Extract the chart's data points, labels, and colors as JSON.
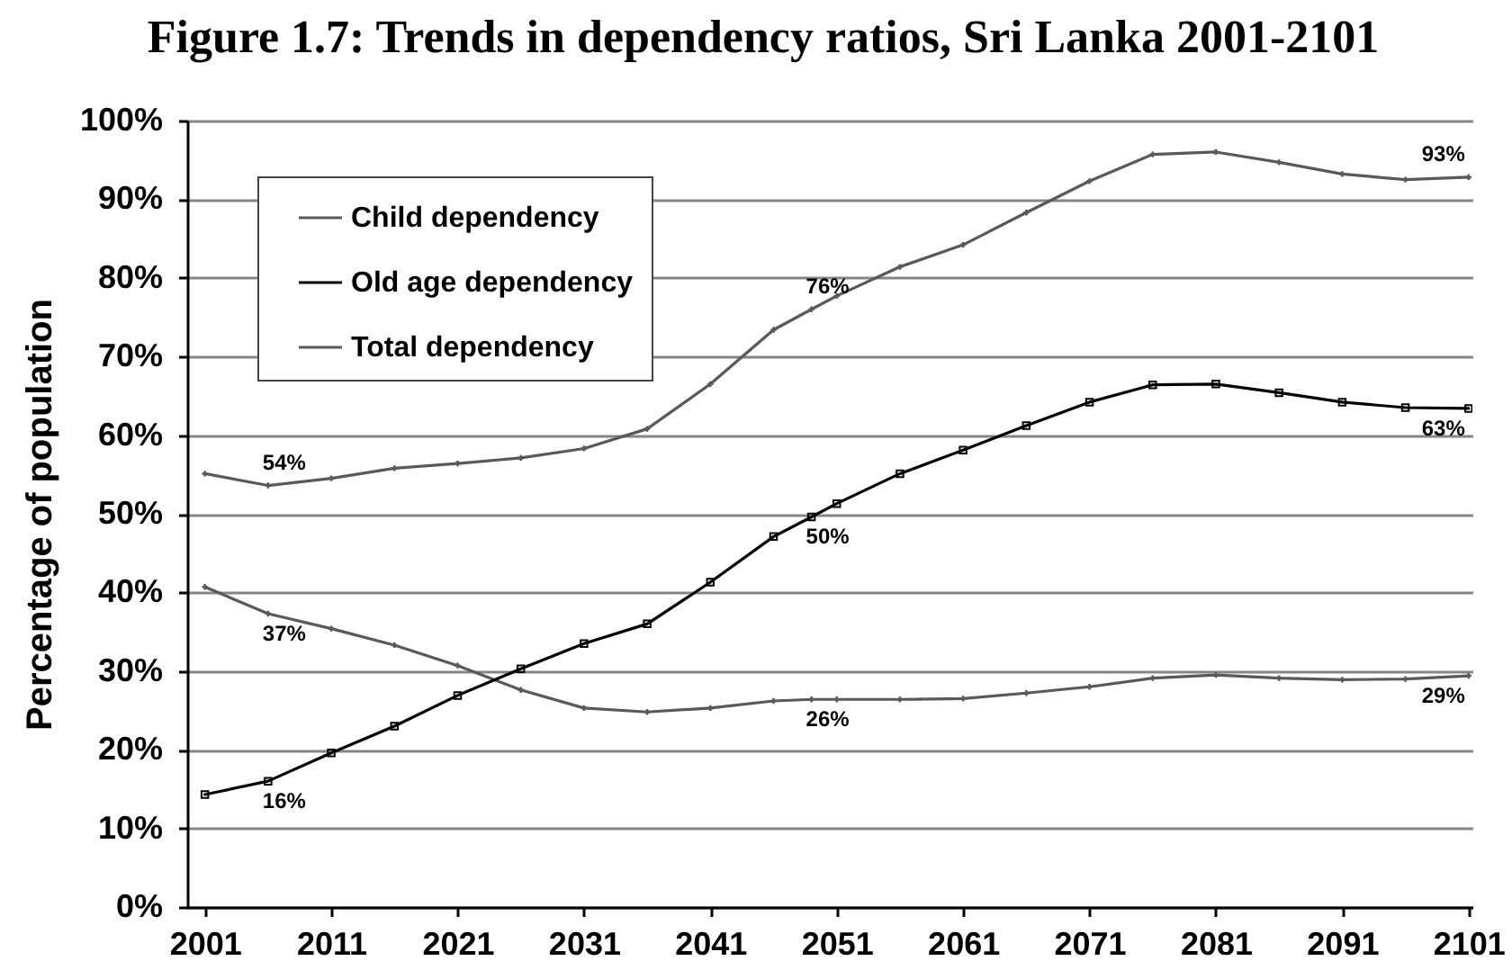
{
  "chart_data": {
    "type": "line",
    "title": "Figure 1.7: Trends in dependency ratios, Sri Lanka 2001-2101",
    "ylabel": "Percentage of population",
    "x": [
      2001,
      2006,
      2011,
      2016,
      2021,
      2026,
      2031,
      2036,
      2041,
      2046,
      2049,
      2051,
      2056,
      2061,
      2066,
      2071,
      2076,
      2081,
      2086,
      2091,
      2096,
      2101
    ],
    "series": [
      {
        "name": "Child dependency",
        "color": "#595959",
        "marker": "cross",
        "values": [
          40.7,
          37.3,
          35.4,
          33.3,
          30.7,
          27.6,
          25.3,
          24.8,
          25.3,
          26.2,
          26.4,
          26.4,
          26.4,
          26.5,
          27.2,
          28.0,
          29.1,
          29.5,
          29.1,
          28.9,
          29.0,
          29.4
        ],
        "value_labels": [
          null,
          "37%",
          null,
          null,
          null,
          null,
          null,
          null,
          null,
          null,
          "26%",
          null,
          null,
          null,
          null,
          null,
          null,
          null,
          null,
          null,
          null,
          "29%"
        ]
      },
      {
        "name": "Old age dependency",
        "color": "#000000",
        "marker": "square",
        "values": [
          14.3,
          16.0,
          19.6,
          23.0,
          26.9,
          30.3,
          33.5,
          36.0,
          41.3,
          47.1,
          49.6,
          51.3,
          55.1,
          58.1,
          61.2,
          64.2,
          66.4,
          66.5,
          65.4,
          64.2,
          63.5,
          63.4
        ],
        "value_labels": [
          null,
          "16%",
          null,
          null,
          null,
          null,
          null,
          null,
          null,
          null,
          "50%",
          null,
          null,
          null,
          null,
          null,
          null,
          null,
          null,
          null,
          null,
          "63%"
        ]
      },
      {
        "name": "Total dependency",
        "color": "#595959",
        "marker": "cross",
        "values": [
          55.1,
          53.6,
          54.5,
          55.8,
          56.4,
          57.1,
          58.3,
          60.8,
          66.5,
          73.4,
          76.0,
          77.7,
          81.4,
          84.2,
          88.3,
          92.3,
          95.7,
          96.0,
          94.7,
          93.2,
          92.5,
          92.8
        ],
        "value_labels": [
          null,
          "54%",
          null,
          null,
          null,
          null,
          null,
          null,
          null,
          null,
          "76%",
          null,
          null,
          null,
          null,
          null,
          null,
          null,
          null,
          null,
          null,
          "93%"
        ]
      }
    ],
    "xlim": [
      1999.6,
      2101.3
    ],
    "xticks": [
      2001,
      2011,
      2021,
      2031,
      2041,
      2051,
      2061,
      2071,
      2081,
      2091,
      2101
    ],
    "ylim": [
      0,
      100
    ],
    "yticks": [
      {
        "value": 0,
        "label": "0%"
      },
      {
        "value": 10,
        "label": "10%"
      },
      {
        "value": 20,
        "label": "20%"
      },
      {
        "value": 30,
        "label": "30%"
      },
      {
        "value": 40,
        "label": "40%"
      },
      {
        "value": 50,
        "label": "50%"
      },
      {
        "value": 60,
        "label": "60%"
      },
      {
        "value": 70,
        "label": "70%"
      },
      {
        "value": 80,
        "label": "80%"
      },
      {
        "value": 90,
        "label": "90%"
      },
      {
        "value": 100,
        "label": "100%"
      }
    ],
    "grid": "y",
    "legend": "top left"
  }
}
